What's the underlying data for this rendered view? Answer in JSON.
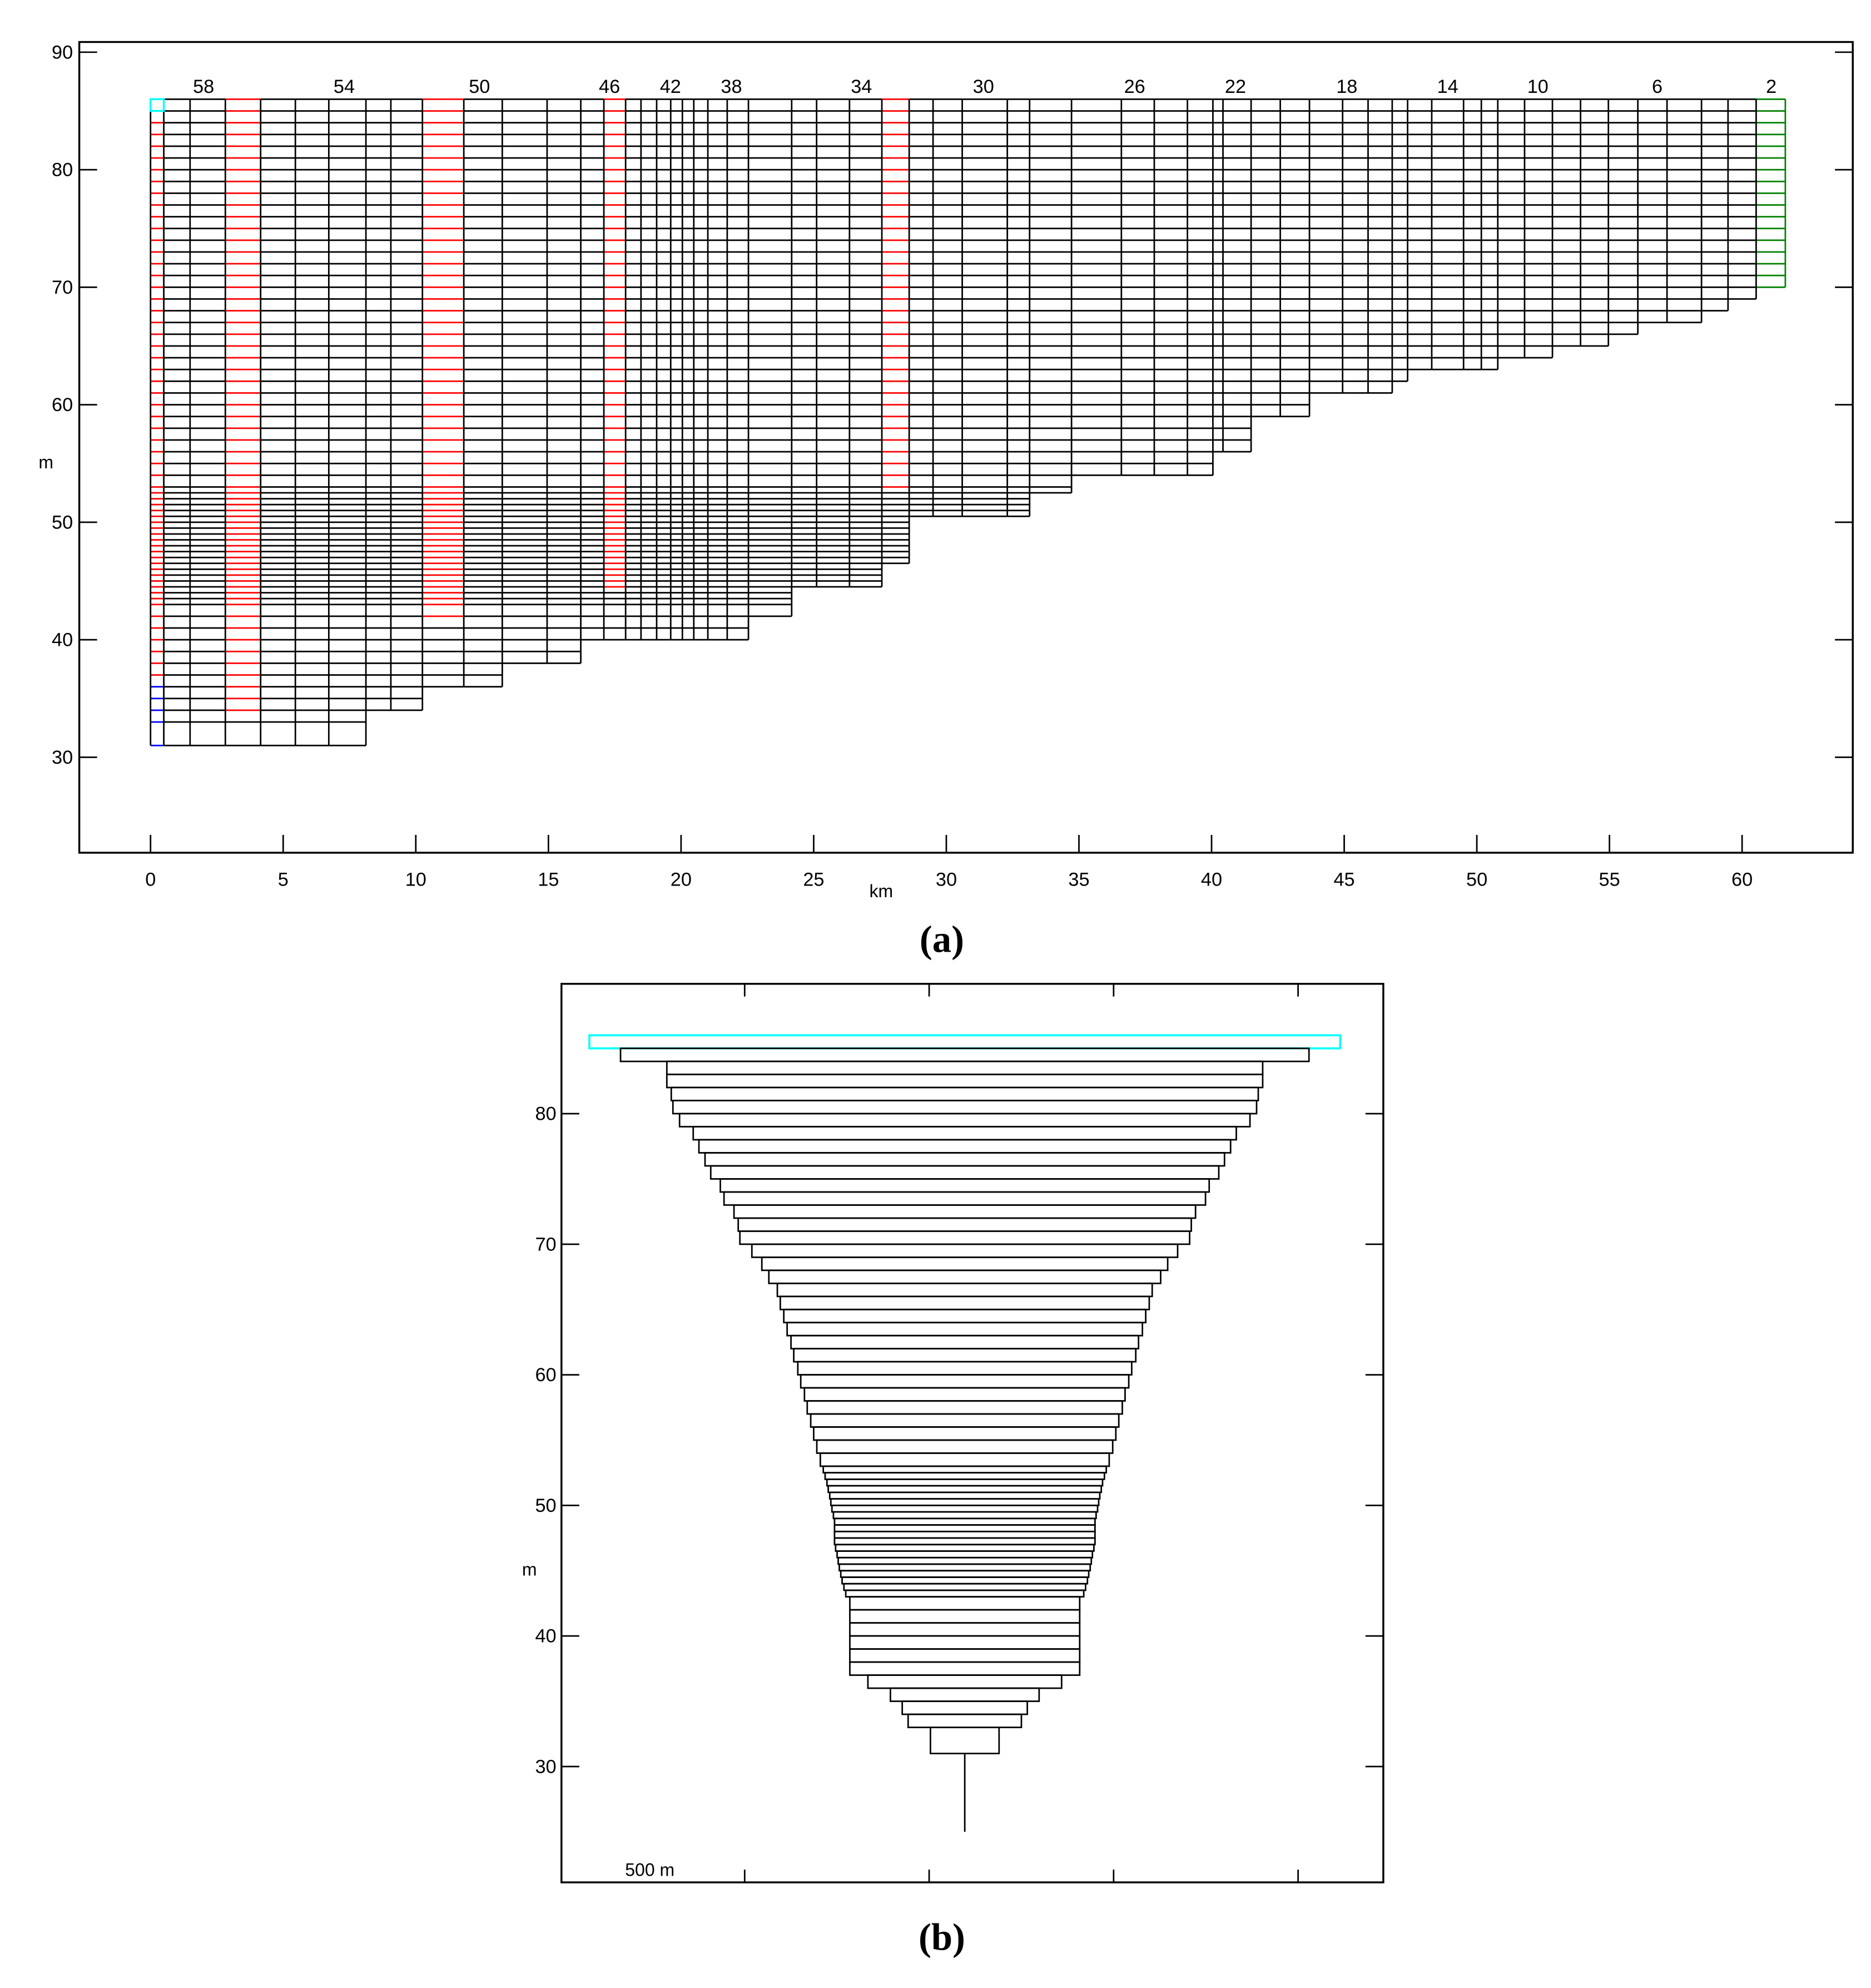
{
  "colors": {
    "grid": "#000000",
    "highlight": "#ff0000",
    "bottom": "#0000ff",
    "top_cell": "#00ffff",
    "end_segment": "#008000"
  },
  "captions": {
    "a": "(a)",
    "b": "(b)"
  },
  "chart_data": [
    {
      "panel": "a",
      "type": "grid",
      "xlabel": "km",
      "ylabel": "m",
      "xlim": [
        -2.7,
        64.2
      ],
      "ylim": [
        21.9,
        90.9
      ],
      "xticks": [
        0,
        5,
        10,
        15,
        20,
        25,
        30,
        35,
        40,
        45,
        50,
        55,
        60
      ],
      "yticks": [
        30,
        40,
        50,
        60,
        70,
        80,
        90
      ],
      "grid": false,
      "top_elevation": 86,
      "layer_boundaries": [
        86,
        85,
        84,
        83,
        82,
        81,
        80,
        79,
        78,
        77,
        76,
        75,
        74,
        73,
        72,
        71,
        70,
        69,
        68,
        67,
        66,
        65,
        64,
        63,
        62,
        61,
        60,
        59,
        58,
        57,
        56,
        55,
        54,
        53,
        52.5,
        52,
        51.5,
        51,
        50.5,
        50,
        49.5,
        49,
        48.5,
        48,
        47.5,
        47,
        46.5,
        46,
        45.5,
        45,
        44.5,
        44,
        43.5,
        43,
        42,
        41,
        40,
        39,
        38,
        37,
        36,
        35,
        34,
        33,
        31
      ],
      "column_boundaries_km": [
        0,
        0.5,
        1.49,
        2.82,
        4.15,
        5.46,
        6.72,
        8.12,
        9.06,
        10.25,
        11.81,
        13.26,
        14.95,
        16.22,
        17.09,
        17.91,
        18.49,
        19.08,
        19.61,
        20.05,
        20.48,
        21.01,
        21.74,
        22.54,
        24.17,
        25.11,
        26.35,
        27.57,
        28.6,
        29.5,
        30.6,
        32.3,
        33.14,
        34.72,
        36.6,
        37.84,
        39.09,
        40.05,
        40.43,
        41.49,
        42.59,
        43.69,
        44.94,
        45.9,
        46.81,
        47.39,
        48.3,
        49.5,
        50.17,
        50.79,
        51.8,
        52.85,
        53.91,
        54.96,
        56.07,
        57.17,
        58.47,
        59.47,
        60.53,
        61.63
      ],
      "column_bottoms_m": [
        31,
        31,
        31,
        31,
        31,
        31,
        31,
        34,
        34,
        36,
        36,
        38,
        38,
        40,
        40,
        40,
        40,
        40,
        40,
        40,
        40,
        40,
        40,
        42,
        44.5,
        44.5,
        44.5,
        46.5,
        50.5,
        50.5,
        50.5,
        50.5,
        52.5,
        54,
        54,
        54,
        54,
        56,
        56,
        59,
        59,
        61,
        61,
        61,
        62,
        63,
        63,
        63,
        63,
        64,
        64,
        65,
        65,
        66,
        67,
        67,
        68,
        69,
        70
      ],
      "highlighted_columns": [
        {
          "column": 0,
          "color": "#ff0000",
          "down_to_m": 37
        },
        {
          "column": 3,
          "color": "#ff0000",
          "down_to_m": 34
        },
        {
          "column": 9,
          "color": "#ff0000",
          "down_to_m": 42
        },
        {
          "column": 14,
          "color": "#ff0000",
          "down_to_m": 44.5
        },
        {
          "column": 27,
          "color": "#ff0000",
          "down_to_m": 53
        },
        {
          "column": 58,
          "color": "#008000",
          "down_to_m": 70
        }
      ],
      "segment_labels": [
        {
          "text": "58",
          "km": 2.0
        },
        {
          "text": "54",
          "km": 7.3
        },
        {
          "text": "50",
          "km": 12.4
        },
        {
          "text": "46",
          "km": 17.3
        },
        {
          "text": "42",
          "km": 19.6
        },
        {
          "text": "38",
          "km": 21.9
        },
        {
          "text": "34",
          "km": 26.8
        },
        {
          "text": "30",
          "km": 31.4
        },
        {
          "text": "26",
          "km": 37.1
        },
        {
          "text": "22",
          "km": 40.9
        },
        {
          "text": "18",
          "km": 45.1
        },
        {
          "text": "14",
          "km": 48.9
        },
        {
          "text": "10",
          "km": 52.3
        },
        {
          "text": "6",
          "km": 56.8
        },
        {
          "text": "2",
          "km": 61.1
        }
      ]
    },
    {
      "panel": "b",
      "type": "grid",
      "ylabel": "m",
      "scale_label": "500 m",
      "ylim": [
        20,
        89.9
      ],
      "yticks": [
        30,
        40,
        50,
        60,
        70,
        80
      ],
      "x_tick_spacing_m": 500,
      "layer_widths_m": [
        2035,
        1866,
        1615,
        1615,
        1591,
        1582,
        1546,
        1472,
        1441,
        1408,
        1377,
        1325,
        1305,
        1251,
        1228,
        1219,
        1154,
        1100,
        1062,
        1016,
        1000,
        981,
        963,
        942,
        927,
        905,
        889,
        869,
        854,
        835,
        819,
        802,
        783,
        767,
        757,
        747,
        740,
        732,
        726,
        720,
        712,
        706,
        706,
        706,
        706,
        700,
        692,
        686,
        680,
        672,
        665,
        655,
        645,
        623,
        623,
        623,
        623,
        623,
        623,
        525,
        403,
        339,
        307,
        186
      ],
      "stick_bottom_m": 25
    }
  ]
}
